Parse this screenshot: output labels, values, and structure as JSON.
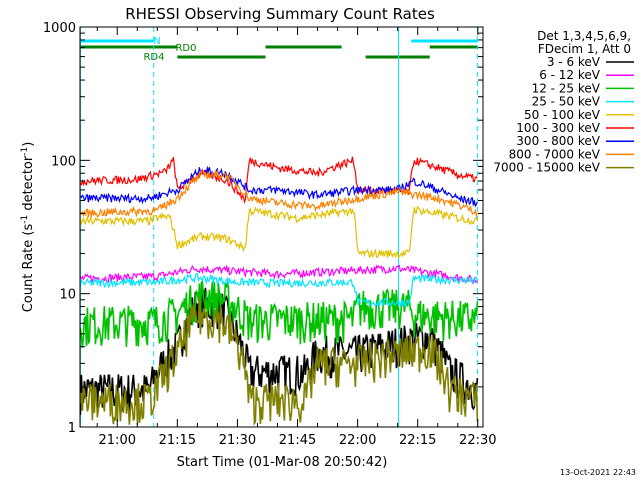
{
  "chart_data": {
    "type": "line",
    "title": "RHESSI Observing Summary Count Rates",
    "xlabel": "Start Time (01-Mar-08 20:50:42)",
    "ylabel_main": "Count Rate (s",
    "ylabel_sup1": "-1",
    "ylabel_mid": " detector",
    "ylabel_sup2": "-1",
    "ylabel_end": ")",
    "yscale": "log",
    "ylim": [
      1,
      1000
    ],
    "xlim_minutes": [
      1250.7,
      1351.3
    ],
    "x_ticks": [
      {
        "label": "21:00",
        "minutes": 1260
      },
      {
        "label": "21:15",
        "minutes": 1275
      },
      {
        "label": "21:30",
        "minutes": 1290
      },
      {
        "label": "21:45",
        "minutes": 1305
      },
      {
        "label": "22:00",
        "minutes": 1320
      },
      {
        "label": "22:15",
        "minutes": 1335
      },
      {
        "label": "22:30",
        "minutes": 1350
      }
    ],
    "y_ticks": [
      {
        "label": "1",
        "value": 1
      },
      {
        "label": "10",
        "value": 10
      },
      {
        "label": "100",
        "value": 100
      },
      {
        "label": "1000",
        "value": 1000
      }
    ],
    "legend_header": [
      "Det 1,3,4,5,6,9,",
      "FDecim 1, Att 0"
    ],
    "legend_placement": "right",
    "timestamp": "13-Oct-2021 22:43",
    "orbit_markers": {
      "vertical_solid_minutes": [
        1250.8,
        1330.2
      ],
      "vertical_dashed_minutes": [
        1269.1,
        1349.9
      ]
    },
    "flags": [
      {
        "label": "N",
        "color": "#00e5ff",
        "row": 1,
        "segments": [
          [
            1250.8,
            1269.1
          ],
          [
            1333.4,
            1350.0
          ]
        ]
      },
      {
        "label": "RD0",
        "color": "#008000",
        "row": 2,
        "segments": [
          [
            1250.8,
            1275.0
          ],
          [
            1297.0,
            1316.0
          ],
          [
            1338.0,
            1350.0
          ]
        ]
      },
      {
        "label": "RD4",
        "color": "#008000",
        "row": 3,
        "segments": [
          [
            1275.0,
            1297.0
          ],
          [
            1322.0,
            1338.0
          ]
        ]
      }
    ],
    "series": [
      {
        "name": "3 - 6 keV",
        "color": "#000000",
        "pts": [
          [
            1250.8,
            1.9
          ],
          [
            1268,
            1.9
          ],
          [
            1270,
            2.6
          ],
          [
            1275,
            4
          ],
          [
            1280,
            8.5
          ],
          [
            1286,
            8
          ],
          [
            1291,
            4
          ],
          [
            1293,
            2.6
          ],
          [
            1307,
            2.6
          ],
          [
            1310,
            3.6
          ],
          [
            1320,
            3.6
          ],
          [
            1323,
            3.8
          ],
          [
            1338,
            4.8
          ],
          [
            1343,
            2.6
          ],
          [
            1350,
            1.9
          ]
        ]
      },
      {
        "name": "6 - 12 keV",
        "color": "#ff00ff",
        "pts": [
          [
            1250.8,
            13
          ],
          [
            1270,
            13.5
          ],
          [
            1280,
            15.5
          ],
          [
            1286,
            15
          ],
          [
            1300,
            14
          ],
          [
            1320,
            15
          ],
          [
            1330,
            15.5
          ],
          [
            1340,
            14
          ],
          [
            1350,
            12.5
          ]
        ]
      },
      {
        "name": "12 - 25 keV",
        "color": "#00c000",
        "pts": [
          [
            1250.8,
            6
          ],
          [
            1270,
            6.2
          ],
          [
            1275,
            7.2
          ],
          [
            1281,
            9.8
          ],
          [
            1287,
            9.2
          ],
          [
            1293,
            6.3
          ],
          [
            1300,
            6.4
          ],
          [
            1319,
            6.5
          ],
          [
            1320,
            8
          ],
          [
            1333,
            8
          ],
          [
            1334,
            7
          ],
          [
            1345,
            6.6
          ],
          [
            1350,
            6.5
          ]
        ]
      },
      {
        "name": "25 - 50 keV",
        "color": "#00e5ff",
        "pts": [
          [
            1250.8,
            12
          ],
          [
            1270,
            12.2
          ],
          [
            1280,
            13.2
          ],
          [
            1290,
            12.2
          ],
          [
            1300,
            12
          ],
          [
            1319,
            12.2
          ],
          [
            1320,
            8.6
          ],
          [
            1333,
            8.6
          ],
          [
            1334,
            13
          ],
          [
            1350,
            12.5
          ]
        ]
      },
      {
        "name": "50 - 100 keV",
        "color": "#e0c000",
        "pts": [
          [
            1250.8,
            35
          ],
          [
            1268,
            35
          ],
          [
            1270,
            37
          ],
          [
            1273,
            38
          ],
          [
            1275,
            23
          ],
          [
            1281,
            27
          ],
          [
            1287,
            26
          ],
          [
            1292,
            22
          ],
          [
            1293,
            42
          ],
          [
            1305,
            37
          ],
          [
            1319,
            42
          ],
          [
            1320,
            20
          ],
          [
            1333,
            20
          ],
          [
            1334,
            43
          ],
          [
            1345,
            37
          ],
          [
            1350,
            35
          ]
        ]
      },
      {
        "name": "100 - 300 keV",
        "color": "#ff0000",
        "pts": [
          [
            1250.8,
            70
          ],
          [
            1265,
            72
          ],
          [
            1272,
            82
          ],
          [
            1274,
            100
          ],
          [
            1275,
            60
          ],
          [
            1281,
            80
          ],
          [
            1287,
            72
          ],
          [
            1292,
            50
          ],
          [
            1293,
            100
          ],
          [
            1300,
            88
          ],
          [
            1310,
            80
          ],
          [
            1319,
            100
          ],
          [
            1320,
            60
          ],
          [
            1333,
            58
          ],
          [
            1334,
            100
          ],
          [
            1345,
            78
          ],
          [
            1350,
            72
          ]
        ]
      },
      {
        "name": "300 - 800 keV",
        "color": "#0000ff",
        "pts": [
          [
            1250.8,
            52
          ],
          [
            1268,
            52
          ],
          [
            1275,
            60
          ],
          [
            1281,
            85
          ],
          [
            1287,
            80
          ],
          [
            1293,
            60
          ],
          [
            1300,
            60
          ],
          [
            1310,
            55
          ],
          [
            1320,
            60
          ],
          [
            1330,
            60
          ],
          [
            1334,
            70
          ],
          [
            1345,
            52
          ],
          [
            1350,
            48
          ]
        ]
      },
      {
        "name": "800 - 7000 keV",
        "color": "#ff8000",
        "pts": [
          [
            1250.8,
            40
          ],
          [
            1270,
            42
          ],
          [
            1275,
            52
          ],
          [
            1281,
            78
          ],
          [
            1287,
            78
          ],
          [
            1293,
            52
          ],
          [
            1300,
            48
          ],
          [
            1310,
            45
          ],
          [
            1320,
            52
          ],
          [
            1330,
            58
          ],
          [
            1340,
            52
          ],
          [
            1350,
            41
          ]
        ]
      },
      {
        "name": "7000 - 15000 keV",
        "color": "#808000",
        "pts": [
          [
            1250.8,
            1.6
          ],
          [
            1268,
            1.6
          ],
          [
            1270,
            2
          ],
          [
            1275,
            3.5
          ],
          [
            1280,
            7
          ],
          [
            1286,
            6.5
          ],
          [
            1291,
            3.5
          ],
          [
            1293,
            1.6
          ],
          [
            1307,
            1.6
          ],
          [
            1310,
            3
          ],
          [
            1320,
            3
          ],
          [
            1323,
            3.2
          ],
          [
            1338,
            4
          ],
          [
            1343,
            1.9
          ],
          [
            1350,
            1.6
          ]
        ]
      }
    ]
  }
}
